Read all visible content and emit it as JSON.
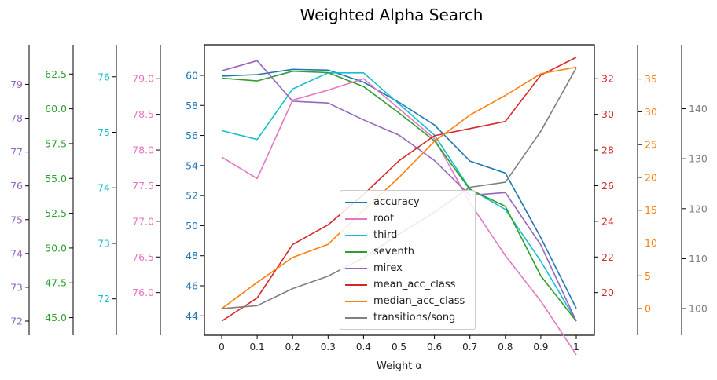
{
  "chart_data": {
    "type": "line",
    "title": "Weighted Alpha Search",
    "xlabel": "Weight α",
    "x": [
      0,
      0.1,
      0.2,
      0.3,
      0.4,
      0.5,
      0.6,
      0.7,
      0.8,
      0.9,
      1
    ],
    "x_tick_labels": [
      "0",
      "0.1",
      "0.2",
      "0.3",
      "0.4",
      "0.5",
      "0.6",
      "0.7",
      "0.8",
      "0.9",
      "1"
    ],
    "grid": false,
    "legend_position": "bottom-center",
    "axes": [
      {
        "id": "acc",
        "side": "left",
        "color": "#1f77b4",
        "ylim": [
          43.65,
          61.2
        ],
        "ticks": [
          44,
          46,
          48,
          50,
          52,
          54,
          56,
          58,
          60
        ],
        "tick_labels": [
          "44",
          "46",
          "48",
          "50",
          "52",
          "54",
          "56",
          "58",
          "60"
        ]
      },
      {
        "id": "root",
        "side": "left",
        "color": "#e377c2",
        "ylim": [
          75.6,
          79.3
        ],
        "ticks": [
          76.0,
          76.5,
          77.0,
          77.5,
          78.0,
          78.5,
          79.0
        ],
        "tick_labels": [
          "76.0",
          "76.5",
          "77.0",
          "77.5",
          "78.0",
          "78.5",
          "79.0"
        ]
      },
      {
        "id": "third",
        "side": "left",
        "color": "#17becf",
        "ylim": [
          71.6,
          76.35
        ],
        "ticks": [
          72,
          73,
          74,
          75,
          76
        ],
        "tick_labels": [
          "72",
          "73",
          "74",
          "75",
          "76"
        ]
      },
      {
        "id": "seventh",
        "side": "left",
        "color": "#2ca02c",
        "ylim": [
          44.75,
          63.7
        ],
        "ticks": [
          45.0,
          47.5,
          50.0,
          52.5,
          55.0,
          57.5,
          60.0,
          62.5
        ],
        "tick_labels": [
          "45.0",
          "47.5",
          "50.0",
          "52.5",
          "55.0",
          "57.5",
          "60.0",
          "62.5"
        ]
      },
      {
        "id": "mirex",
        "side": "left",
        "color": "#9467bd",
        "ylim": [
          72.0,
          79.8
        ],
        "ticks": [
          72,
          73,
          74,
          75,
          76,
          77,
          78,
          79
        ],
        "tick_labels": [
          "72",
          "73",
          "74",
          "75",
          "76",
          "77",
          "78",
          "79"
        ]
      },
      {
        "id": "mean",
        "side": "right",
        "color": "#d62728",
        "ylim": [
          18.4,
          33.2
        ],
        "ticks": [
          20,
          22,
          24,
          26,
          28,
          30,
          32
        ],
        "tick_labels": [
          "20",
          "22",
          "24",
          "26",
          "28",
          "30",
          "32"
        ]
      },
      {
        "id": "median",
        "side": "right",
        "color": "#ff7f0e",
        "ylim": [
          -1.9,
          38.3
        ],
        "ticks": [
          0,
          5,
          10,
          15,
          20,
          25,
          30,
          35
        ],
        "tick_labels": [
          "0",
          "5",
          "10",
          "15",
          "20",
          "25",
          "30",
          "35"
        ]
      },
      {
        "id": "trans",
        "side": "right",
        "color": "#7f7f7f",
        "ylim": [
          97.5,
          150.3
        ],
        "ticks": [
          100,
          110,
          120,
          130,
          140
        ],
        "tick_labels": [
          "100",
          "110",
          "120",
          "130",
          "140"
        ]
      }
    ],
    "series": [
      {
        "name": "accuracy",
        "axis": "acc",
        "color": "#1f77b4",
        "values": [
          59.95,
          60.05,
          60.4,
          60.35,
          59.55,
          58.2,
          56.7,
          54.3,
          53.5,
          49.2,
          44.5
        ]
      },
      {
        "name": "root",
        "axis": "root",
        "color": "#e377c2",
        "values": [
          77.9,
          77.6,
          78.7,
          78.84,
          79.0,
          78.58,
          78.16,
          77.26,
          76.52,
          75.88,
          75.13
        ]
      },
      {
        "name": "third",
        "axis": "third",
        "color": "#17becf",
        "values": [
          75.03,
          74.87,
          75.78,
          76.07,
          76.07,
          75.51,
          74.95,
          73.98,
          73.61,
          72.68,
          71.6
        ]
      },
      {
        "name": "seventh",
        "axis": "seventh",
        "color": "#2ca02c",
        "values": [
          62.2,
          62.0,
          62.7,
          62.6,
          61.6,
          59.7,
          57.7,
          54.2,
          53.0,
          48.0,
          44.75
        ]
      },
      {
        "name": "mirex",
        "axis": "mirex",
        "color": "#9467bd",
        "values": [
          79.4,
          79.7,
          78.5,
          78.45,
          77.95,
          77.5,
          76.75,
          75.72,
          75.8,
          74.25,
          72.0
        ]
      },
      {
        "name": "mean_acc_class",
        "axis": "mean",
        "color": "#d62728",
        "values": [
          18.4,
          19.7,
          22.7,
          23.8,
          25.5,
          27.4,
          28.8,
          29.2,
          29.6,
          32.2,
          33.2
        ]
      },
      {
        "name": "median_acc_class",
        "axis": "median",
        "color": "#ff7f0e",
        "values": [
          0.0,
          4.0,
          7.8,
          9.8,
          15.0,
          20.0,
          25.5,
          29.5,
          32.5,
          35.8,
          36.8
        ]
      },
      {
        "name": "transitions/song",
        "axis": "trans",
        "color": "#7f7f7f",
        "values": [
          100.0,
          100.6,
          104.0,
          106.5,
          110.2,
          114.9,
          119.3,
          124.3,
          125.3,
          135.5,
          148.2
        ]
      }
    ]
  }
}
